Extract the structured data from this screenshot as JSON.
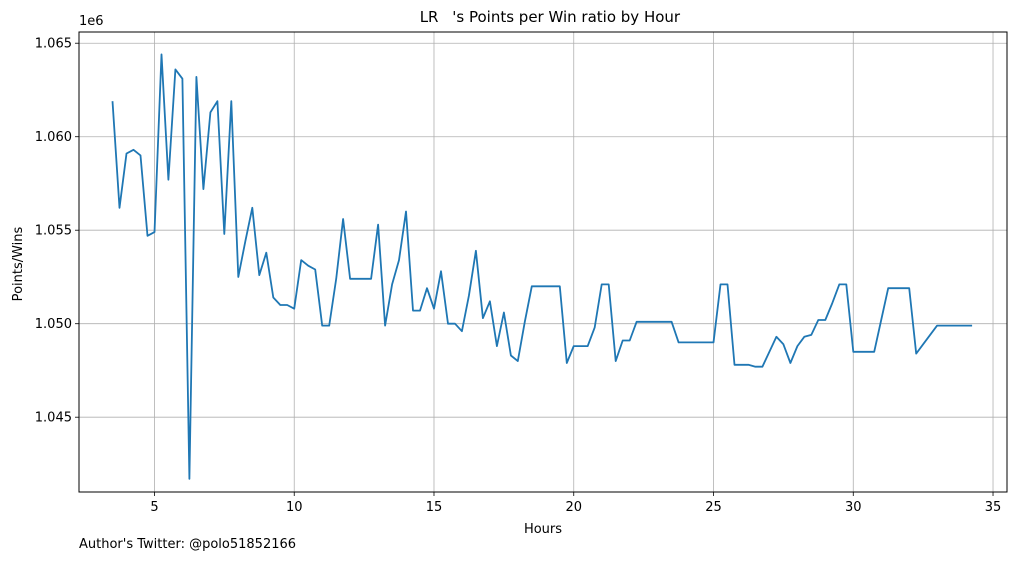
{
  "footer_text": "Author's Twitter: @polo51852166",
  "chart_data": {
    "type": "line",
    "title": "ᅟᅠLRᅟᅠ's Points per Win ratio by Hour",
    "xlabel": "Hours",
    "ylabel": "Points/Wins",
    "y_offset_text": "1e6",
    "xlim": [
      2.3,
      35.5
    ],
    "ylim": [
      1041000,
      1065600
    ],
    "x_ticks": [
      5,
      10,
      15,
      20,
      25,
      30,
      35
    ],
    "x_tick_labels": [
      "5",
      "10",
      "15",
      "20",
      "25",
      "30",
      "35"
    ],
    "y_ticks": [
      1045000,
      1050000,
      1055000,
      1060000,
      1065000
    ],
    "y_tick_labels": [
      "1.045",
      "1.050",
      "1.055",
      "1.060",
      "1.065"
    ],
    "grid": true,
    "line_color": "#1f77b4",
    "series": [
      {
        "x": [
          3.5,
          3.75,
          4.0,
          4.25,
          4.5,
          4.75,
          5.0,
          5.25,
          5.5,
          5.75,
          6.0,
          6.25,
          6.5,
          6.75,
          7.0,
          7.25,
          7.5,
          7.75,
          8.0,
          8.25,
          8.5,
          8.75,
          9.0,
          9.25,
          9.5,
          9.75,
          10.0,
          10.25,
          10.5,
          10.75,
          11.0,
          11.25,
          11.5,
          11.75,
          12.0,
          12.25,
          12.5,
          12.75,
          13.0,
          13.25,
          13.5,
          13.75,
          14.0,
          14.25,
          14.5,
          14.75,
          15.0,
          15.25,
          15.5,
          15.75,
          16.0,
          16.25,
          16.5,
          16.75,
          17.0,
          17.25,
          17.5,
          17.75,
          18.0,
          18.25,
          18.5,
          18.75,
          19.0,
          19.25,
          19.5,
          19.75,
          20.0,
          20.25,
          20.5,
          20.75,
          21.0,
          21.25,
          21.5,
          21.75,
          22.0,
          22.25,
          22.5,
          22.75,
          23.0,
          23.25,
          23.5,
          23.75,
          24.0,
          24.25,
          24.5,
          24.75,
          25.0,
          25.25,
          25.5,
          25.75,
          26.0,
          26.25,
          26.5,
          26.75,
          27.0,
          27.25,
          27.5,
          27.75,
          28.0,
          28.25,
          28.5,
          28.75,
          29.0,
          29.25,
          29.5,
          29.75,
          30.0,
          30.25,
          30.5,
          30.75,
          31.0,
          31.25,
          31.5,
          31.75,
          32.0,
          32.25,
          32.5,
          32.75,
          33.0,
          33.25,
          33.5,
          33.75,
          34.0,
          34.25
        ],
        "y": [
          1061900,
          1056200,
          1059100,
          1059300,
          1059000,
          1054700,
          1054900,
          1064400,
          1057700,
          1063600,
          1063100,
          1041700,
          1063200,
          1057200,
          1061300,
          1061900,
          1054800,
          1061900,
          1052500,
          1054400,
          1056200,
          1052600,
          1053800,
          1051400,
          1051000,
          1051000,
          1050800,
          1053400,
          1053100,
          1052900,
          1049900,
          1049900,
          1052400,
          1055600,
          1052400,
          1052400,
          1052400,
          1052400,
          1055300,
          1049900,
          1052100,
          1053400,
          1056000,
          1050700,
          1050700,
          1051900,
          1050800,
          1052800,
          1050000,
          1050000,
          1049600,
          1051500,
          1053900,
          1050300,
          1051200,
          1048800,
          1050600,
          1048300,
          1048000,
          1050100,
          1052000,
          1052000,
          1052000,
          1052000,
          1052000,
          1047900,
          1048800,
          1048800,
          1048800,
          1049800,
          1052100,
          1052100,
          1048000,
          1049100,
          1049100,
          1050100,
          1050100,
          1050100,
          1050100,
          1050100,
          1050100,
          1049000,
          1049000,
          1049000,
          1049000,
          1049000,
          1049000,
          1052100,
          1052100,
          1047800,
          1047800,
          1047800,
          1047700,
          1047700,
          1048500,
          1049300,
          1048900,
          1047900,
          1048800,
          1049300,
          1049400,
          1050200,
          1050200,
          1051100,
          1052100,
          1052100,
          1048500,
          1048500,
          1048500,
          1048500,
          1050200,
          1051900,
          1051900,
          1051900,
          1051900,
          1048400,
          1048900,
          1049400,
          1049900,
          1049900,
          1049900,
          1049900,
          1049900,
          1049900
        ]
      }
    ]
  }
}
